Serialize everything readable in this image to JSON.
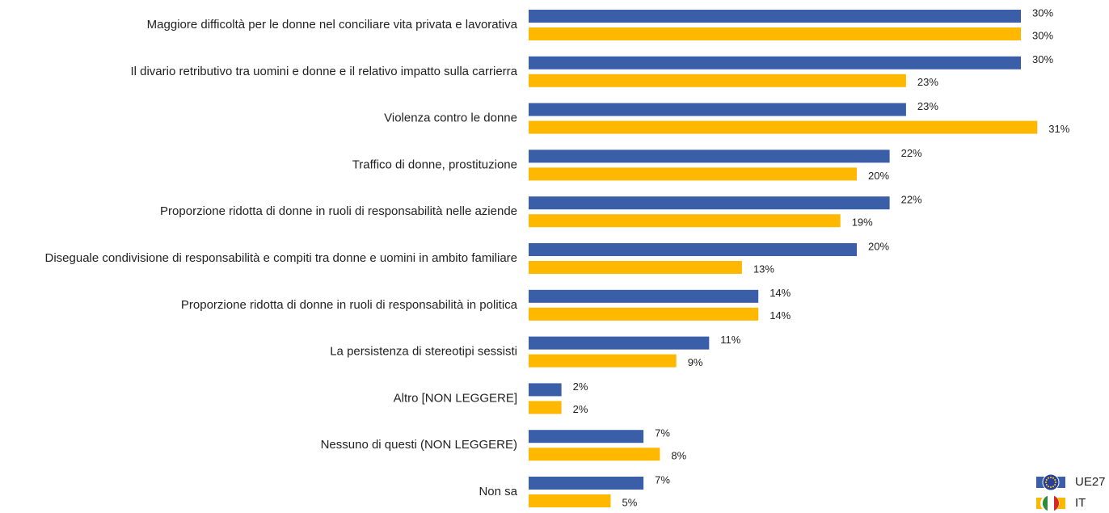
{
  "chart_data": {
    "type": "hbar",
    "categories": [
      "Maggiore difficoltà per le donne nel conciliare vita privata e lavorativa",
      "Il divario retributivo tra uomini e donne e il relativo impatto sulla carrierra",
      "Violenza contro le donne",
      "Traffico di donne, prostituzione",
      "Proporzione ridotta di donne in ruoli di responsabilità nelle aziende",
      "Diseguale condivisione di responsabilità e compiti tra donne e uomini in ambito familiare",
      "Proporzione ridotta di donne in ruoli di responsabilità in politica",
      "La persistenza di stereotipi sessisti",
      "Altro [NON LEGGERE]",
      "Nessuno di questi (NON LEGGERE)",
      "Non sa"
    ],
    "series": [
      {
        "name": "UE27",
        "color": "#3a5fa8",
        "values": [
          30,
          30,
          23,
          22,
          22,
          20,
          14,
          11,
          2,
          7,
          7
        ],
        "value_labels": [
          "30%",
          "30%",
          "23%",
          "22%",
          "22%",
          "20%",
          "14%",
          "11%",
          "2%",
          "7%",
          "7%"
        ]
      },
      {
        "name": "IT",
        "color": "#ffb800",
        "values": [
          30,
          23,
          31,
          20,
          19,
          13,
          14,
          9,
          2,
          8,
          5
        ],
        "value_labels": [
          "30%",
          "23%",
          "31%",
          "20%",
          "19%",
          "13%",
          "14%",
          "9%",
          "2%",
          "8%",
          "5%"
        ]
      }
    ]
  }
}
